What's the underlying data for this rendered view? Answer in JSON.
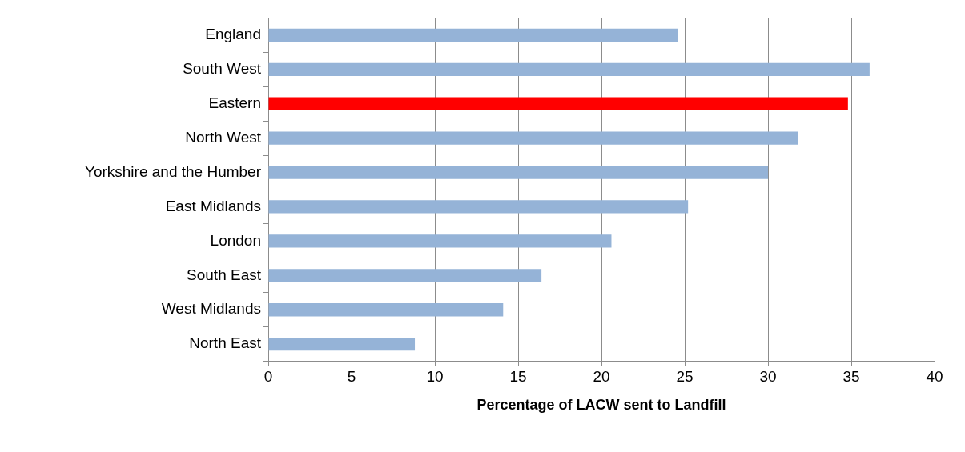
{
  "chart_data": {
    "type": "bar",
    "orientation": "horizontal",
    "xlabel": "Percentage of LACW sent to Landfill",
    "categories": [
      "England",
      "South West",
      "Eastern",
      "North West",
      "Yorkshire and the Humber",
      "East Midlands",
      "London",
      "South East",
      "West Midlands",
      "North East"
    ],
    "values": [
      24.6,
      36.1,
      34.8,
      31.8,
      30.0,
      25.2,
      20.6,
      16.4,
      14.1,
      8.8
    ],
    "colors": [
      "#95b3d7",
      "#95b3d7",
      "#ff0000",
      "#95b3d7",
      "#95b3d7",
      "#95b3d7",
      "#95b3d7",
      "#95b3d7",
      "#95b3d7",
      "#95b3d7"
    ],
    "xlim": [
      0,
      40
    ],
    "xticks": [
      0,
      5,
      10,
      15,
      20,
      25,
      30,
      35,
      40
    ],
    "grid": "x",
    "legend": false
  }
}
